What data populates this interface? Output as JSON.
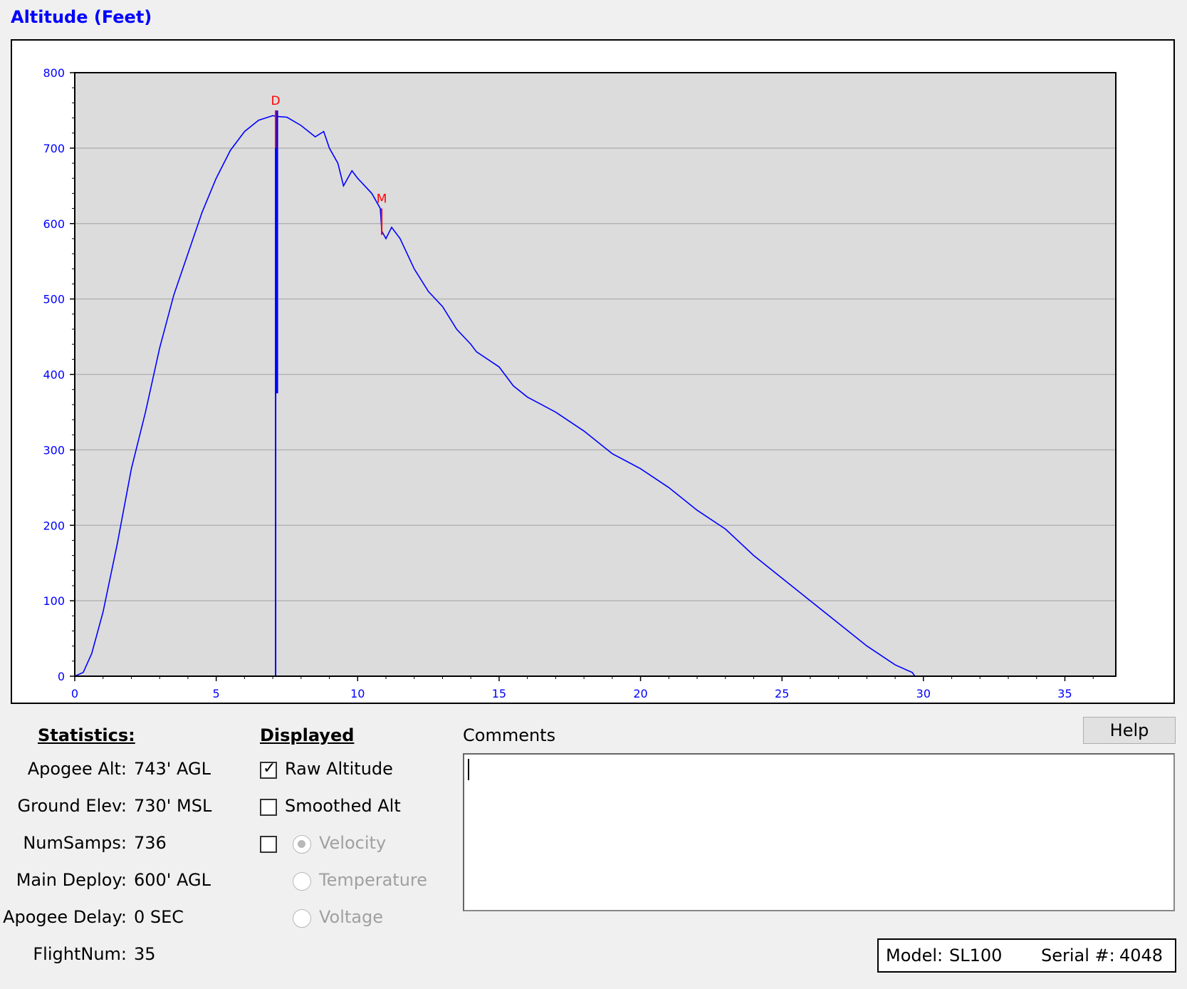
{
  "chart_data": {
    "type": "line",
    "title": "Altitude (Feet)",
    "xlim": [
      0,
      36.8
    ],
    "ylim": [
      0,
      800
    ],
    "x_ticks": [
      "0",
      "5",
      "10",
      "15",
      "20",
      "25",
      "30",
      "35"
    ],
    "y_ticks": [
      "0",
      "100",
      "200",
      "300",
      "400",
      "500",
      "600",
      "700",
      "800"
    ],
    "grid": "horizontal",
    "series": [
      {
        "color": "#0000ff",
        "x": [
          0,
          0.3,
          0.6,
          1.0,
          1.5,
          2.0,
          2.5,
          3.0,
          3.5,
          4.0,
          4.5,
          5.0,
          5.5,
          6.0,
          6.5,
          7.0,
          7.15,
          7.5,
          8.0,
          8.5,
          8.8,
          9.0,
          9.3,
          9.5,
          9.8,
          10.0,
          10.5,
          10.8,
          10.85,
          11.0,
          11.2,
          11.5,
          12.0,
          12.5,
          13.0,
          13.5,
          14.0,
          14.2,
          15.0,
          15.5,
          16.0,
          17.0,
          18.0,
          19.0,
          20.0,
          21.0,
          22.0,
          23.0,
          24.0,
          25.0,
          26.0,
          27.0,
          28.0,
          29.0,
          29.6,
          29.7,
          30.0,
          32.0,
          34.0,
          36.8
        ],
        "y": [
          0,
          5,
          30,
          85,
          175,
          275,
          350,
          435,
          505,
          560,
          615,
          660,
          697,
          722,
          737,
          743,
          742,
          741,
          730,
          715,
          722,
          700,
          680,
          650,
          670,
          660,
          640,
          620,
          590,
          580,
          595,
          580,
          540,
          510,
          490,
          460,
          440,
          430,
          410,
          385,
          370,
          350,
          325,
          295,
          275,
          250,
          220,
          195,
          160,
          130,
          100,
          70,
          40,
          15,
          5,
          0,
          0,
          0,
          0,
          0
        ]
      }
    ],
    "annotations": [
      {
        "label": "D",
        "x": 7.1,
        "y_top": 750,
        "y_bottom": 700,
        "color": "#ff0000"
      },
      {
        "label": "M",
        "x": 10.85,
        "y_top": 620,
        "y_bottom": 585,
        "color": "#ff0000"
      }
    ],
    "deploy_spike": {
      "x": 7.1,
      "from": 0,
      "to": 750,
      "min_inner": 375
    }
  },
  "statistics": {
    "header": "Statistics:",
    "rows": [
      {
        "label": "Apogee Alt:",
        "value": "743' AGL"
      },
      {
        "label": "Ground Elev:",
        "value": "730' MSL"
      },
      {
        "label": "NumSamps:",
        "value": "736"
      },
      {
        "label": "Main Deploy:",
        "value": "600' AGL"
      },
      {
        "label": "Apogee Delay:",
        "value": "0 SEC"
      },
      {
        "label": "FlightNum:",
        "value": "35"
      }
    ]
  },
  "displayed": {
    "header": "Displayed",
    "raw_altitude": {
      "label": "Raw Altitude",
      "checked": true
    },
    "smoothed_alt": {
      "label": "Smoothed Alt",
      "checked": false
    },
    "extra": {
      "checked": false
    },
    "radios": [
      {
        "label": "Velocity",
        "selected": true
      },
      {
        "label": "Temperature",
        "selected": false
      },
      {
        "label": "Voltage",
        "selected": false
      }
    ]
  },
  "comments": {
    "label": "Comments",
    "value": ""
  },
  "help_button": "Help",
  "device": {
    "model_label": "Model:",
    "model_value": "SL100",
    "serial_label": "Serial #:",
    "serial_value": "4048"
  }
}
